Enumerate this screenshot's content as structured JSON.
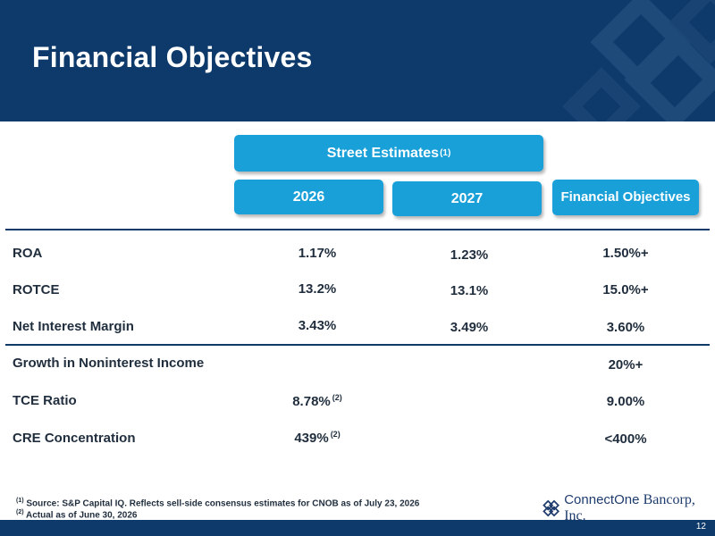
{
  "slide": {
    "title": "Financial Objectives",
    "page_number": "12"
  },
  "headers": {
    "street_estimates": "Street Estimates",
    "street_estimates_note": "(1)",
    "year_2026": "2026",
    "year_2027": "2027",
    "financial_objectives": "Financial Objectives"
  },
  "rows": [
    {
      "label": "ROA",
      "v2026": "1.17%",
      "v2026_note": "",
      "v2027": "1.23%",
      "objective": "1.50%+"
    },
    {
      "label": "ROTCE",
      "v2026": "13.2%",
      "v2026_note": "",
      "v2027": "13.1%",
      "objective": "15.0%+"
    },
    {
      "label": "Net Interest Margin",
      "v2026": "3.43%",
      "v2026_note": "",
      "v2027": "3.49%",
      "objective": "3.60%"
    },
    {
      "label": "Growth in Noninterest Income",
      "v2026": "",
      "v2026_note": "",
      "v2027": "",
      "objective": "20%+"
    },
    {
      "label": "TCE Ratio",
      "v2026": "8.78%",
      "v2026_note": "(2)",
      "v2027": "",
      "objective": "9.00%"
    },
    {
      "label": "CRE Concentration",
      "v2026": "439%",
      "v2026_note": "(2)",
      "v2027": "",
      "objective": "<400%"
    }
  ],
  "footnotes": [
    {
      "marker": "(1)",
      "text": "Source: S&P Capital IQ. Reflects sell-side consensus estimates for CNOB as of July 23, 2026"
    },
    {
      "marker": "(2)",
      "text": "Actual as of June 30, 2026"
    }
  ],
  "logo": {
    "name_part1": "ConnectOne",
    "name_part2": "Bancorp, Inc.",
    "icon": "diamond-lattice-icon"
  },
  "colors": {
    "header_bg": "#0d3a6b",
    "pill_bg": "#1aa0d8",
    "text": "#1f2d3d"
  }
}
